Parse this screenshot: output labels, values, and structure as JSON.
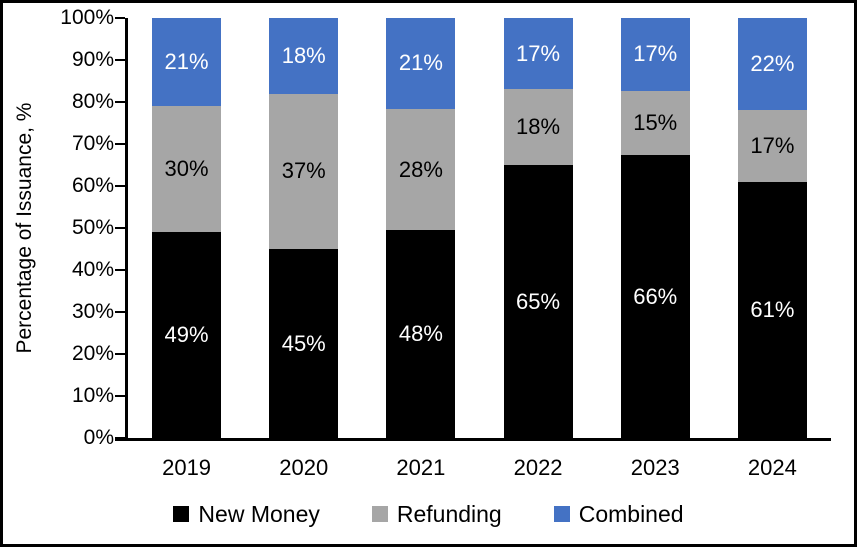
{
  "figure": {
    "kind": "stacked-bar-chart"
  },
  "chart_data": {
    "type": "bar",
    "stacked": true,
    "title": "",
    "xlabel": "",
    "ylabel": "Percentage of Issuance, %",
    "categories": [
      "2019",
      "2020",
      "2021",
      "2022",
      "2023",
      "2024"
    ],
    "series": [
      {
        "name": "New Money",
        "color": "#000000",
        "label_color": "#ffffff",
        "values": [
          49,
          45,
          48,
          65,
          66,
          61
        ]
      },
      {
        "name": "Refunding",
        "color": "#a6a6a6",
        "label_color": "#000000",
        "values": [
          30,
          37,
          28,
          18,
          15,
          17
        ]
      },
      {
        "name": "Combined",
        "color": "#4472c4",
        "label_color": "#ffffff",
        "values": [
          21,
          18,
          21,
          17,
          17,
          22
        ]
      }
    ],
    "data_label_format": "{value}%",
    "ylim": [
      0,
      100
    ],
    "y_ticks": [
      "0%",
      "10%",
      "20%",
      "30%",
      "40%",
      "50%",
      "60%",
      "70%",
      "80%",
      "90%",
      "100%"
    ],
    "grid": false,
    "legend_position": "bottom"
  }
}
